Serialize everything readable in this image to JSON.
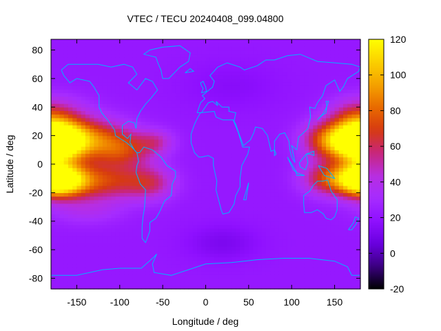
{
  "chart_data": {
    "type": "heatmap",
    "title": "VTEC / TECU 20240408_099.04800",
    "xlabel": "Longitude / deg",
    "ylabel": "Latitude / deg",
    "xlim": [
      -180,
      180
    ],
    "ylim": [
      -87.5,
      87.5
    ],
    "x_ticks": [
      -150,
      -100,
      -50,
      0,
      50,
      100,
      150
    ],
    "y_ticks": [
      -80,
      -60,
      -40,
      -20,
      0,
      20,
      40,
      60,
      80
    ],
    "x_tick_labels": [
      "-150",
      "-100",
      "-50",
      "0",
      "50",
      "100",
      "150"
    ],
    "y_tick_labels": [
      "-80",
      "-60",
      "-40",
      "-20",
      "0",
      "20",
      "40",
      "60",
      "80"
    ],
    "colorbar": {
      "range": [
        -20,
        120
      ],
      "ticks": [
        -20,
        0,
        20,
        40,
        60,
        80,
        100,
        120
      ],
      "tick_labels": [
        "-20",
        "0",
        "20",
        "40",
        "60",
        "80",
        "100",
        "120"
      ],
      "palette": [
        "#000000",
        "#3b0082",
        "#6a00e0",
        "#8f10ff",
        "#a62cff",
        "#b82ee0",
        "#c8267a",
        "#d63a10",
        "#e86a00",
        "#f5a200",
        "#fbd000",
        "#ffff00"
      ]
    },
    "background_value": 22,
    "features": [
      {
        "lon": -170,
        "lat": 16,
        "amp": 95,
        "slon": 22,
        "slat": 9
      },
      {
        "lon": -165,
        "lat": -11,
        "amp": 82,
        "slon": 22,
        "slat": 8
      },
      {
        "lon": -130,
        "lat": 18,
        "amp": 45,
        "slon": 28,
        "slat": 10
      },
      {
        "lon": -115,
        "lat": -12,
        "amp": 42,
        "slon": 28,
        "slat": 9
      },
      {
        "lon": -95,
        "lat": 10,
        "amp": 38,
        "slon": 25,
        "slat": 9
      },
      {
        "lon": -65,
        "lat": -13,
        "amp": 33,
        "slon": 20,
        "slat": 8
      },
      {
        "lon": -58,
        "lat": 16,
        "amp": 22,
        "slon": 15,
        "slat": 6
      },
      {
        "lon": 175,
        "lat": 16,
        "amp": 85,
        "slon": 22,
        "slat": 9
      },
      {
        "lon": 178,
        "lat": -10,
        "amp": 78,
        "slon": 20,
        "slat": 8
      },
      {
        "lon": 140,
        "lat": 17,
        "amp": 45,
        "slon": 20,
        "slat": 9
      },
      {
        "lon": 140,
        "lat": -10,
        "amp": 42,
        "slon": 20,
        "slat": 8
      },
      {
        "lon": -170,
        "lat": 35,
        "amp": 22,
        "slon": 25,
        "slat": 9
      },
      {
        "lon": 170,
        "lat": 33,
        "amp": 22,
        "slon": 20,
        "slat": 9
      },
      {
        "lon": -140,
        "lat": -32,
        "amp": 14,
        "slon": 30,
        "slat": 7
      },
      {
        "lon": 20,
        "lat": -55,
        "amp": -10,
        "slon": 30,
        "slat": 9
      },
      {
        "lon": 30,
        "lat": 55,
        "amp": -6,
        "slon": 40,
        "slat": 12
      }
    ]
  }
}
